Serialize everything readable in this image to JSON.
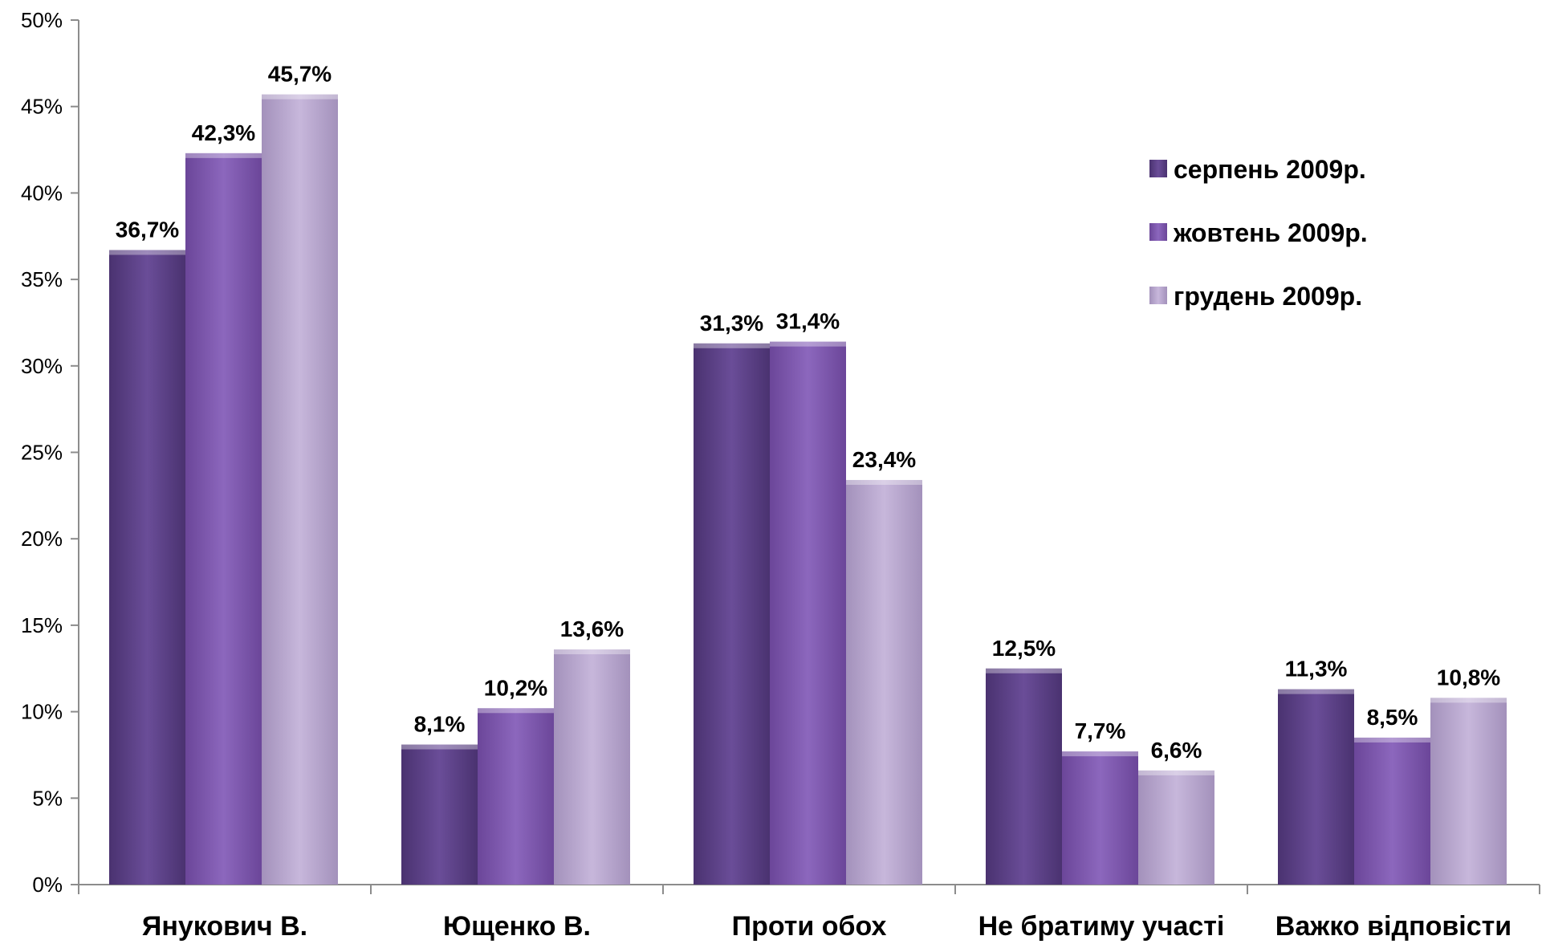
{
  "chart_data": {
    "type": "bar",
    "categories": [
      "Янукович В.",
      "Ющенко В.",
      "Проти обох",
      "Не братиму участі",
      "Важко відповісти"
    ],
    "series": [
      {
        "name": "серпень 2009р.",
        "values": [
          36.7,
          8.1,
          31.3,
          12.5,
          11.3
        ],
        "labels": [
          "36,7%",
          "8,1%",
          "31,3%",
          "12,5%",
          "11,3%"
        ],
        "color": "#5b3f86"
      },
      {
        "name": "жовтень 2009р.",
        "values": [
          42.3,
          10.2,
          31.4,
          7.7,
          8.5
        ],
        "labels": [
          "42,3%",
          "10,2%",
          "31,4%",
          "7,7%",
          "8,5%"
        ],
        "color": "#7d56ad"
      },
      {
        "name": "грудень 2009р.",
        "values": [
          45.7,
          13.6,
          23.4,
          6.6,
          10.8
        ],
        "labels": [
          "45,7%",
          "13,6%",
          "23,4%",
          "6,6%",
          "10,8%"
        ],
        "color": "#b5a3cc"
      }
    ],
    "y_ticks": [
      "0%",
      "5%",
      "10%",
      "15%",
      "20%",
      "25%",
      "30%",
      "35%",
      "40%",
      "45%",
      "50%"
    ],
    "ylim": [
      0,
      50
    ],
    "title": "",
    "xlabel": "",
    "ylabel": "",
    "grid": false,
    "legend_position": "top-right"
  }
}
